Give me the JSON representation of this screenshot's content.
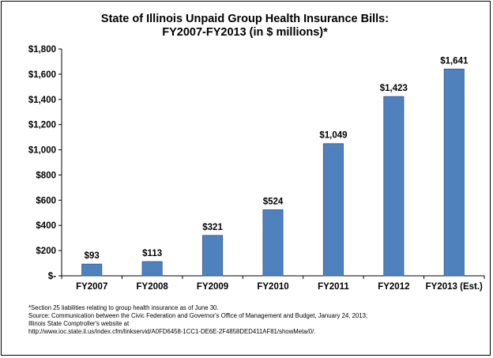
{
  "chart_data": {
    "type": "bar",
    "title": "State of Illinois Unpaid Group Health Insurance Bills:",
    "subtitle": "FY2007-FY2013 (in $ millions)*",
    "xlabel": "",
    "ylabel": "",
    "categories": [
      "FY2007",
      "FY2008",
      "FY2009",
      "FY2010",
      "FY2011",
      "FY2012",
      "FY2013 (Est.)"
    ],
    "values": [
      93,
      113,
      321,
      524,
      1049,
      1423,
      1641
    ],
    "data_labels": [
      "$93",
      "$113",
      "$321",
      "$524",
      "$1,049",
      "$1,423",
      "$1,641"
    ],
    "ylim": [
      0,
      1800
    ],
    "y_ticks": [
      0,
      200,
      400,
      600,
      800,
      1000,
      1200,
      1400,
      1600,
      1800
    ],
    "y_tick_labels": [
      "$-",
      "$200",
      "$400",
      "$600",
      "$800",
      "$1,000",
      "$1,200",
      "$1,400",
      "$1,600",
      "$1,800"
    ],
    "bar_color": "#4F81BD",
    "bar_edge_color": "#2F5597",
    "grid": false,
    "legend": "none"
  },
  "footnotes": [
    "*Section 25 liabilities relating to group health insurance as of June 30.",
    "Source: Communication between the Civic Federation and Governor's Office of Management and Budget, January 24, 2013;",
    "Illinois State Comptroller's website at",
    "http://www.ioc.state.il.us/index.cfm/linkservid/A0FD6458-1CC1-DE6E-2F4858DED411AF81/showMeta/0/."
  ]
}
